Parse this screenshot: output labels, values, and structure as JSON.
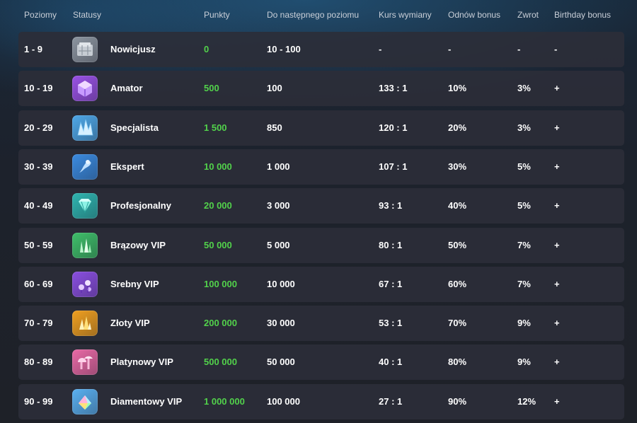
{
  "header": {
    "levels": "Poziomy",
    "status": "Statusy",
    "points": "Punkty",
    "next_level": "Do następnego poziomu",
    "exchange_rate": "Kurs wymiany",
    "renew_bonus": "Odnów bonus",
    "cashback": "Zwrot",
    "birthday_bonus": "Birthday bonus"
  },
  "rows": [
    {
      "levels": "1 - 9",
      "status": "Nowicjusz",
      "icon": "stone-block-icon",
      "points": "0",
      "next": "10 - 100",
      "rate": "-",
      "renew": "-",
      "cashback": "-",
      "birthday": "-",
      "color": "#8c95a0"
    },
    {
      "levels": "10 - 19",
      "status": "Amator",
      "icon": "purple-cube-icon",
      "points": "500",
      "next": "100",
      "rate": "133 : 1",
      "renew": "10%",
      "cashback": "3%",
      "birthday": "+",
      "color": "#9a52e6"
    },
    {
      "levels": "20 - 29",
      "status": "Specjalista",
      "icon": "crystal-shard-icon",
      "points": "1 500",
      "next": "850",
      "rate": "120 : 1",
      "renew": "20%",
      "cashback": "3%",
      "birthday": "+",
      "color": "#4fa8e8"
    },
    {
      "levels": "30 - 39",
      "status": "Ekspert",
      "icon": "blue-rune-icon",
      "points": "10 000",
      "next": "1 000",
      "rate": "107 : 1",
      "renew": "30%",
      "cashback": "5%",
      "birthday": "+",
      "color": "#3b8be0"
    },
    {
      "levels": "40 - 49",
      "status": "Profesjonalny",
      "icon": "diamond-gem-icon",
      "points": "20 000",
      "next": "3 000",
      "rate": "93 : 1",
      "renew": "40%",
      "cashback": "5%",
      "birthday": "+",
      "color": "#2fb5b0"
    },
    {
      "levels": "50 - 59",
      "status": "Brązowy VIP",
      "icon": "green-crystals-icon",
      "points": "50 000",
      "next": "5 000",
      "rate": "80 : 1",
      "renew": "50%",
      "cashback": "7%",
      "birthday": "+",
      "color": "#3fbf6a"
    },
    {
      "levels": "60 - 69",
      "status": "Srebny VIP",
      "icon": "purple-flowers-icon",
      "points": "100 000",
      "next": "10 000",
      "rate": "67 : 1",
      "renew": "60%",
      "cashback": "7%",
      "birthday": "+",
      "color": "#8a4fe0"
    },
    {
      "levels": "70 - 79",
      "status": "Złoty VIP",
      "icon": "gold-crystals-icon",
      "points": "200 000",
      "next": "30 000",
      "rate": "53 : 1",
      "renew": "70%",
      "cashback": "9%",
      "birthday": "+",
      "color": "#f0a020"
    },
    {
      "levels": "80 - 89",
      "status": "Platynowy VIP",
      "icon": "pink-mushrooms-icon",
      "points": "500 000",
      "next": "50 000",
      "rate": "40 : 1",
      "renew": "80%",
      "cashback": "9%",
      "birthday": "+",
      "color": "#e96aa6"
    },
    {
      "levels": "90 - 99",
      "status": "Diamentowy VIP",
      "icon": "rainbow-gem-icon",
      "points": "1 000 000",
      "next": "100 000",
      "rate": "27 : 1",
      "renew": "90%",
      "cashback": "12%",
      "birthday": "+",
      "color": "#5ab0f0"
    }
  ]
}
